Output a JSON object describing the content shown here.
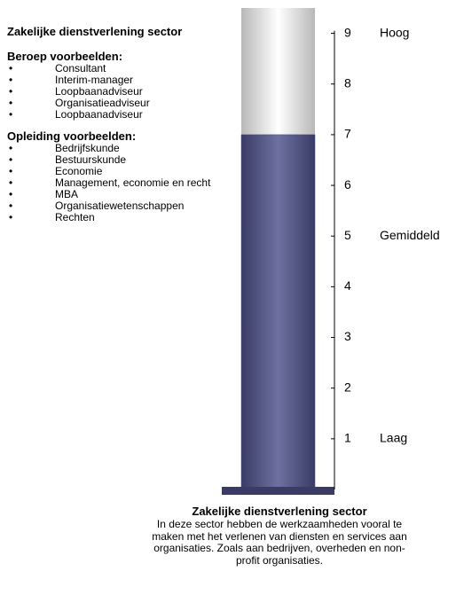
{
  "profile": {
    "title": "Zakelijke dienstverlening sector",
    "sections": [
      {
        "heading": "Beroep voorbeelden:",
        "items": [
          "Consultant",
          "Interim-manager",
          "Loopbaanadviseur",
          "Organisatieadviseur",
          "Loopbaanadviseur"
        ]
      },
      {
        "heading": "Opleiding voorbeelden:",
        "items": [
          "Bedrijfskunde",
          "Bestuurskunde",
          "Economie",
          "Management, economie en recht",
          "MBA",
          "Organisatiewetenschappen",
          "Rechten"
        ]
      }
    ]
  },
  "chart_data": {
    "type": "bar",
    "values": [
      7
    ],
    "color": "#4a4c7e",
    "ylim": [
      0,
      9.5
    ],
    "yticks": [
      1,
      2,
      3,
      4,
      5,
      6,
      7,
      8,
      9
    ],
    "annotations": [
      {
        "value": 9,
        "label": "Hoog"
      },
      {
        "value": 5,
        "label": "Gemiddeld"
      },
      {
        "value": 1,
        "label": "Laag"
      }
    ],
    "title": "Zakelijke dienstverlening sector",
    "subtitle": "In deze sector hebben de werkzaamheden vooral te maken met het verlenen van diensten en services aan organisaties. Zoals aan bedrijven, overheden en non-profit organisaties."
  }
}
